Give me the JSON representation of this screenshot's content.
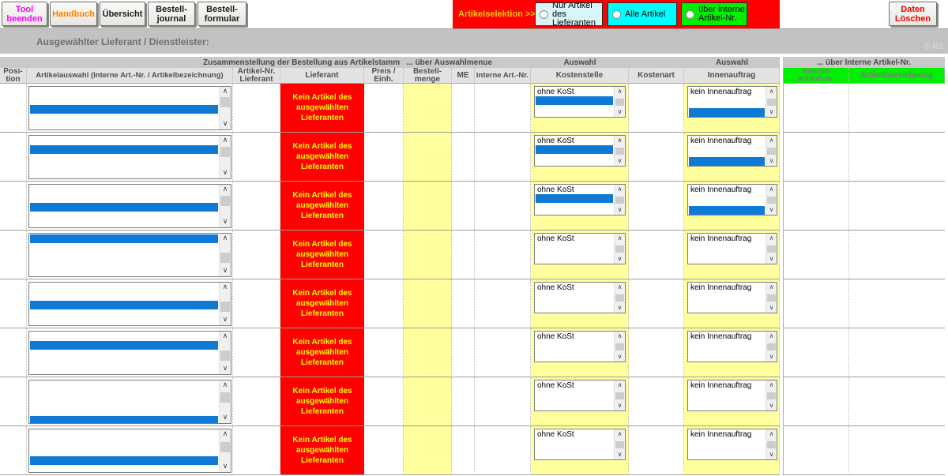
{
  "toolbar": {
    "tool_beenden": "Tool\nbeenden",
    "handbuch": "Handbuch",
    "uebersicht": "Übersicht",
    "bestell_journal": "Bestell-\njournal",
    "bestell_formular": "Bestell-\nformular",
    "daten_loeschen": "Daten\nLöschen"
  },
  "selektion": {
    "label": "Artikelselektion >>>",
    "options": [
      {
        "label": "Nur Artikel des\nLieferanten",
        "bg": "#d9f5fc",
        "selected": false
      },
      {
        "label": "Alle Artikel",
        "bg": "#00ffff",
        "selected": false
      },
      {
        "label": "über interne\nArtikel-Nr.",
        "bg": "#00f000",
        "selected": false
      }
    ]
  },
  "lieferant_bar": {
    "label": "Ausgewählter Lieferant / Dienstleister:",
    "value": "",
    "copyright": "© RS"
  },
  "table": {
    "group_headers": {
      "main": "Zusammenstellung der Bestellung aus Artikelstamm   ... über Auswahlmenue",
      "auswahl_kostenstelle": "Auswahl",
      "auswahl_innenauftrag": "Auswahl",
      "interne": "... über Interne Artikel-Nr."
    },
    "columns": [
      "Posi-\ntion",
      "Artikelauswahl (Interne Art.-Nr. / Artikelbezeichnung)",
      "Artikel-Nr.\nLieferant",
      "Lieferant",
      "Preis /\nEinh.",
      "Bestell-\nmenge",
      "ME",
      "interne Art.-Nr.",
      "Kostenstelle",
      "Kostenart",
      "Innenauftrag",
      "Interne\nArtikel-Nr.",
      "Artikelbezeichnung"
    ],
    "row_text": {
      "lieferant_message": "Kein Artikel des\nausgewählten\nLieferanten",
      "kostenstelle_first": "ohne KoSt",
      "innenauftrag_first": "kein Innenauftrag"
    },
    "rows": [
      {
        "artikel_sel_line": 2,
        "artikel_thumb": 0.02,
        "kost_selected": true,
        "innen_selected": true
      },
      {
        "artikel_sel_line": 1,
        "artikel_thumb": 0.05,
        "kost_selected": true,
        "innen_selected": true
      },
      {
        "artikel_sel_line": 2,
        "artikel_thumb": 0.08,
        "kost_selected": true,
        "innen_selected": true
      },
      {
        "artikel_sel_line": 0,
        "artikel_thumb": 0.75,
        "kost_selected": false,
        "innen_selected": false
      },
      {
        "artikel_sel_line": 2,
        "artikel_thumb": 0.7,
        "kost_selected": false,
        "innen_selected": false
      },
      {
        "artikel_sel_line": 1,
        "artikel_thumb": 0.72,
        "kost_selected": false,
        "innen_selected": false
      },
      {
        "artikel_sel_line": 4,
        "artikel_thumb": 0.12,
        "kost_selected": false,
        "innen_selected": false
      },
      {
        "artikel_sel_line": 3,
        "artikel_thumb": 0.18,
        "kost_selected": false,
        "innen_selected": false
      }
    ]
  },
  "colors": {
    "alert_red": "#fe0000",
    "alert_text_yellow": "#ffff00",
    "input_yellow": "#ffff9e",
    "selection_blue": "#0f7ad6",
    "highlight_green": "#00f000",
    "highlight_cyan": "#00ffff",
    "highlight_pale_cyan": "#d9f5fc"
  }
}
